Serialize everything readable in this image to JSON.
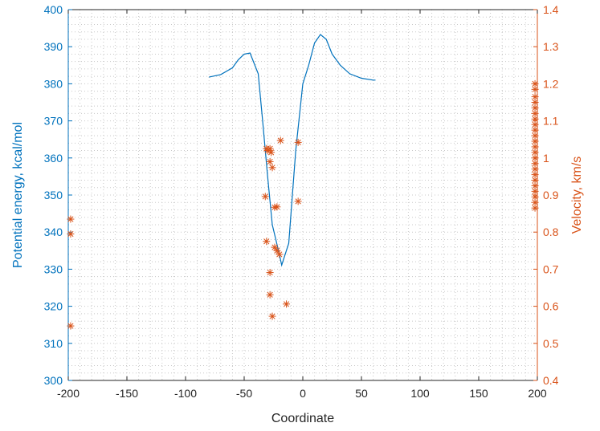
{
  "colors": {
    "left_axis": "#0072BD",
    "right_axis": "#D95319",
    "x_axis": "#262626",
    "grid": "#c8c8c8"
  },
  "chart_data": {
    "type": "line+scatter",
    "xlabel": "Coordinate",
    "ylabel_left": "Potential energy, kcal/mol",
    "ylabel_right": "Velocity, km/s",
    "xlim": [
      -200,
      200
    ],
    "ylim_left": [
      300,
      400
    ],
    "ylim_right": [
      0.4,
      1.4
    ],
    "x_ticks": [
      "-200",
      "-150",
      "-100",
      "-50",
      "0",
      "50",
      "100",
      "150",
      "200"
    ],
    "y_left_ticks": [
      "300",
      "310",
      "320",
      "330",
      "340",
      "350",
      "360",
      "370",
      "380",
      "390",
      "400"
    ],
    "y_right_ticks": [
      "0.4",
      "0.5",
      "0.6",
      "0.7",
      "0.8",
      "0.9",
      "1",
      "1.1",
      "1.2",
      "1.3",
      "1.4"
    ],
    "grid": "dotted minor grid",
    "series": [
      {
        "type": "line",
        "axis": "left",
        "points": [
          [
            -80,
            381.8
          ],
          [
            -70,
            382.5
          ],
          [
            -60,
            384.3
          ],
          [
            -55,
            386.5
          ],
          [
            -50,
            388.0
          ],
          [
            -45,
            388.3
          ],
          [
            -38,
            382.7
          ],
          [
            -34,
            369.0
          ],
          [
            -30,
            355.0
          ],
          [
            -26,
            342.0
          ],
          [
            -20,
            334.0
          ],
          [
            -18,
            331.1
          ],
          [
            -12,
            337.0
          ],
          [
            -6,
            362.0
          ],
          [
            -3,
            371.0
          ],
          [
            0,
            380.0
          ],
          [
            5,
            385.0
          ],
          [
            10,
            391.0
          ],
          [
            15,
            393.3
          ],
          [
            20,
            392.0
          ],
          [
            25,
            388.0
          ],
          [
            32,
            385.0
          ],
          [
            40,
            382.7
          ],
          [
            50,
            381.5
          ],
          [
            60,
            381.0
          ],
          [
            62,
            381.0
          ]
        ]
      },
      {
        "type": "scatter",
        "axis": "right",
        "marker": "asterisk",
        "points": [
          [
            -198,
            0.835
          ],
          [
            -198,
            0.795
          ],
          [
            -198,
            0.547
          ],
          [
            -31,
            1.025
          ],
          [
            -30,
            1.02
          ],
          [
            -28,
            1.025
          ],
          [
            -27,
            1.015
          ],
          [
            -19,
            1.047
          ],
          [
            -4,
            1.042
          ],
          [
            -28,
            0.99
          ],
          [
            -26,
            0.974
          ],
          [
            -32,
            0.896
          ],
          [
            -24,
            0.867
          ],
          [
            -22,
            0.868
          ],
          [
            -4,
            0.883
          ],
          [
            -31,
            0.775
          ],
          [
            -24,
            0.759
          ],
          [
            -22,
            0.75
          ],
          [
            -20,
            0.74
          ],
          [
            -28,
            0.691
          ],
          [
            -28,
            0.631
          ],
          [
            -14,
            0.606
          ],
          [
            -26,
            0.573
          ],
          [
            198,
            1.2
          ],
          [
            198,
            1.185
          ],
          [
            198,
            1.165
          ],
          [
            198,
            1.15
          ],
          [
            198,
            1.135
          ],
          [
            198,
            1.12
          ],
          [
            198,
            1.105
          ],
          [
            198,
            1.09
          ],
          [
            198,
            1.075
          ],
          [
            198,
            1.06
          ],
          [
            198,
            1.045
          ],
          [
            198,
            1.03
          ],
          [
            198,
            1.015
          ],
          [
            198,
            1.0
          ],
          [
            198,
            0.985
          ],
          [
            198,
            0.97
          ],
          [
            198,
            0.955
          ],
          [
            198,
            0.94
          ],
          [
            198,
            0.925
          ],
          [
            198,
            0.91
          ],
          [
            198,
            0.895
          ],
          [
            198,
            0.88
          ],
          [
            198,
            0.865
          ]
        ]
      }
    ]
  }
}
